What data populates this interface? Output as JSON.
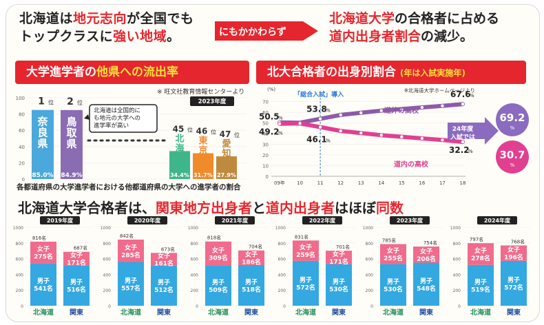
{
  "headline_left": {
    "line1_a": "北海道は",
    "line1_b": "地元志向",
    "line1_c": "が全国でも",
    "line2_a": "トップクラスに",
    "line2_b": "強い地域",
    "line2_c": "。"
  },
  "arrow_label": "にもかかわらず",
  "headline_right": {
    "line1_a": "北海道大学",
    "line1_b": "の合格者に占める",
    "line2_a": "道内出身者割合",
    "line2_b": "の減少。"
  },
  "section_outflow": {
    "title_a": "大学進学者の",
    "title_b": "他県への流出率",
    "source": "※ 旺文社教育情報センターより",
    "year_badge": "2023年度",
    "callout": "北海道は全国的にも地元の大学への進学率が高い",
    "caption": "各都道府県の大学進学者における他都道府県の大学への進学者の割合"
  },
  "section_origin": {
    "title_a": "北大合格者の出身別割合",
    "title_b": "(年は入試実施年)",
    "source": "※北海道大学ホームページより",
    "unit": "(%)",
    "event_label": "「総合入試」導入",
    "series_out_label": "道外の高校",
    "series_in_label": "道内の高校",
    "future_label_1": "24年度",
    "future_label_2": "入試では",
    "future_out": "69.2",
    "future_in": "30.7",
    "future_unit": "%"
  },
  "section_bottom": {
    "title_a": "北海道大学合格者は、",
    "title_b": "関東地方出身者",
    "title_c": "と",
    "title_d": "道内出身者",
    "title_e": "はほぼ",
    "title_f": "同数"
  },
  "chart_data": [
    {
      "type": "bar",
      "title": "大学進学者の他県への流出率",
      "ylim": [
        0,
        100
      ],
      "ticks": [
        0,
        20,
        40,
        60,
        80,
        100
      ],
      "bars": [
        {
          "rank": "1",
          "rank_suffix": "位",
          "name": "奈良県",
          "value": 85.0,
          "label": "85.0%",
          "color": "#4aa8dc"
        },
        {
          "rank": "2",
          "rank_suffix": "位",
          "name": "鳥取県",
          "value": 84.9,
          "label": "84.9%",
          "color": "#8a6cb3"
        },
        {
          "rank": "45",
          "rank_suffix": "位",
          "name": "北海道",
          "value": 34.4,
          "label": "34.4%",
          "color": "#3fb58a"
        },
        {
          "rank": "46",
          "rank_suffix": "位",
          "name": "東京都",
          "value": 31.7,
          "label": "31.7%",
          "color": "#f08a2a"
        },
        {
          "rank": "47",
          "rank_suffix": "位",
          "name": "愛知県",
          "value": 27.9,
          "label": "27.9%",
          "color": "#c08a3e"
        }
      ]
    },
    {
      "type": "line",
      "title": "北大合格者の出身別割合",
      "x": [
        "09年",
        "10",
        "11",
        "12",
        "13",
        "14",
        "15",
        "16",
        "17",
        "18"
      ],
      "ylim": [
        0,
        80
      ],
      "yticks": [
        0,
        10,
        20,
        30,
        40,
        50,
        60,
        70
      ],
      "series": [
        {
          "name": "道外の高校",
          "values": [
            50.5,
            50.2,
            53.8,
            57.5,
            59.5,
            61.5,
            63.0,
            64.5,
            66.0,
            67.6
          ],
          "color": "#8e5aa8"
        },
        {
          "name": "道内の高校",
          "values": [
            49.2,
            49.5,
            46.1,
            42.5,
            40.5,
            38.5,
            37.0,
            35.5,
            34.0,
            32.2
          ],
          "color": "#e0408f"
        }
      ],
      "point_labels": [
        {
          "series": 0,
          "index": 0,
          "text": "50.5",
          "unit": "%"
        },
        {
          "series": 0,
          "index": 2,
          "text": "53.8",
          "unit": "%"
        },
        {
          "series": 0,
          "index": 9,
          "text": "67.6",
          "unit": "%"
        },
        {
          "series": 1,
          "index": 0,
          "text": "49.2",
          "unit": "%"
        },
        {
          "series": 1,
          "index": 2,
          "text": "46.1",
          "unit": "%"
        },
        {
          "series": 1,
          "index": 9,
          "text": "32.2",
          "unit": "%"
        }
      ]
    },
    {
      "type": "bar",
      "title": "北海道大学合格者",
      "ylim": [
        0,
        1000
      ],
      "ticks": [
        0,
        200,
        400,
        600,
        800,
        1000
      ],
      "categories": [
        "北海道",
        "関東"
      ],
      "years": [
        {
          "year": "2019年度",
          "hokkaido": {
            "total": "816名",
            "female": 275,
            "male": 541
          },
          "kanto": {
            "total": "687名",
            "female": 171,
            "male": 516
          }
        },
        {
          "year": "2020年度",
          "hokkaido": {
            "total": "842名",
            "female": 285,
            "male": 557
          },
          "kanto": {
            "total": "673名",
            "female": 161,
            "male": 512
          }
        },
        {
          "year": "2021年度",
          "hokkaido": {
            "total": "818名",
            "female": 309,
            "male": 509
          },
          "kanto": {
            "total": "704名",
            "female": 186,
            "male": 518
          }
        },
        {
          "year": "2022年度",
          "hokkaido": {
            "total": "831名",
            "female": 259,
            "male": 572
          },
          "kanto": {
            "total": "701名",
            "female": 171,
            "male": 530
          }
        },
        {
          "year": "2023年度",
          "hokkaido": {
            "total": "785名",
            "female": 255,
            "male": 530
          },
          "kanto": {
            "total": "754名",
            "female": 206,
            "male": 548
          }
        },
        {
          "year": "2024年度",
          "hokkaido": {
            "total": "797名",
            "female": 278,
            "male": 519
          },
          "kanto": {
            "total": "768名",
            "female": 196,
            "male": 572
          }
        }
      ],
      "female_label": "女子",
      "male_label": "男子",
      "unit": "名",
      "female_color": "#f06b8c",
      "male_color": "#34a8e0"
    }
  ]
}
